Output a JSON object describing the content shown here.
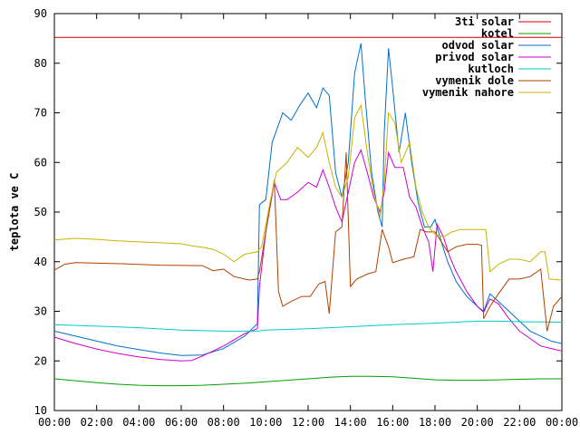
{
  "chart_data": {
    "type": "line",
    "title": "",
    "xlabel": "",
    "ylabel": "teplota ve C",
    "xlim": [
      0,
      24
    ],
    "ylim": [
      10,
      90
    ],
    "x_ticks": [
      "00:00",
      "02:00",
      "04:00",
      "06:00",
      "08:00",
      "10:00",
      "12:00",
      "14:00",
      "16:00",
      "18:00",
      "20:00",
      "22:00",
      "00:00"
    ],
    "y_ticks": [
      10,
      20,
      30,
      40,
      50,
      60,
      70,
      80,
      90
    ],
    "grid": false,
    "legend_position": "top-right",
    "series": [
      {
        "name": "3ti solar",
        "color": "#cc0000",
        "points": [
          [
            0,
            85.2
          ],
          [
            24,
            85.2
          ]
        ]
      },
      {
        "name": "kotel",
        "color": "#00a000",
        "points": [
          [
            0,
            16.4
          ],
          [
            1,
            16
          ],
          [
            2,
            15.6
          ],
          [
            3,
            15.3
          ],
          [
            4,
            15.1
          ],
          [
            5,
            15.0
          ],
          [
            6,
            15.0
          ],
          [
            7,
            15.1
          ],
          [
            8,
            15.3
          ],
          [
            9,
            15.5
          ],
          [
            10,
            15.8
          ],
          [
            11,
            16.1
          ],
          [
            12,
            16.4
          ],
          [
            13,
            16.7
          ],
          [
            14,
            16.9
          ],
          [
            15,
            16.9
          ],
          [
            16,
            16.8
          ],
          [
            17,
            16.5
          ],
          [
            18,
            16.2
          ],
          [
            19,
            16.1
          ],
          [
            20,
            16.1
          ],
          [
            21,
            16.2
          ],
          [
            22,
            16.3
          ],
          [
            23,
            16.4
          ],
          [
            24,
            16.4
          ]
        ]
      },
      {
        "name": "odvod solar",
        "color": "#0070cc",
        "points": [
          [
            0,
            26
          ],
          [
            1,
            25
          ],
          [
            2,
            24
          ],
          [
            3,
            23
          ],
          [
            4,
            22.3
          ],
          [
            5,
            21.6
          ],
          [
            6,
            21.1
          ],
          [
            7,
            21.2
          ],
          [
            8,
            22.5
          ],
          [
            9,
            25
          ],
          [
            9.6,
            27.5
          ],
          [
            9.7,
            51.5
          ],
          [
            10.0,
            52.5
          ],
          [
            10.3,
            64
          ],
          [
            10.8,
            70
          ],
          [
            11.2,
            68.5
          ],
          [
            11.6,
            71.5
          ],
          [
            12.0,
            74
          ],
          [
            12.4,
            71
          ],
          [
            12.7,
            75
          ],
          [
            13.0,
            73.5
          ],
          [
            13.3,
            58
          ],
          [
            13.6,
            53
          ],
          [
            13.9,
            60
          ],
          [
            14.2,
            78
          ],
          [
            14.5,
            84
          ],
          [
            14.7,
            73
          ],
          [
            15.0,
            58
          ],
          [
            15.3,
            50
          ],
          [
            15.5,
            47
          ],
          [
            15.6,
            66
          ],
          [
            15.8,
            83
          ],
          [
            16.0,
            75
          ],
          [
            16.3,
            62
          ],
          [
            16.6,
            70
          ],
          [
            16.9,
            60
          ],
          [
            17.2,
            52
          ],
          [
            17.5,
            47
          ],
          [
            17.8,
            47
          ],
          [
            18.0,
            48.5
          ],
          [
            18.3,
            44
          ],
          [
            18.6,
            40
          ],
          [
            19.0,
            36
          ],
          [
            19.5,
            33
          ],
          [
            20.0,
            31
          ],
          [
            20.3,
            30
          ],
          [
            20.6,
            33.5
          ],
          [
            21,
            32
          ],
          [
            21.5,
            30
          ],
          [
            22,
            28
          ],
          [
            22.5,
            26
          ],
          [
            23,
            25
          ],
          [
            23.5,
            24
          ],
          [
            24,
            23.5
          ]
        ]
      },
      {
        "name": "privod solar",
        "color": "#cc00cc",
        "points": [
          [
            0,
            24.8
          ],
          [
            1,
            23.5
          ],
          [
            2,
            22.4
          ],
          [
            3,
            21.5
          ],
          [
            4,
            20.8
          ],
          [
            5,
            20.3
          ],
          [
            6,
            20
          ],
          [
            6.5,
            20.1
          ],
          [
            7,
            21
          ],
          [
            8,
            23
          ],
          [
            9,
            25.5
          ],
          [
            9.6,
            26.5
          ],
          [
            9.7,
            35
          ],
          [
            10.0,
            46
          ],
          [
            10.4,
            56
          ],
          [
            10.7,
            52.5
          ],
          [
            11.0,
            52.5
          ],
          [
            11.5,
            54
          ],
          [
            12.0,
            56
          ],
          [
            12.4,
            55
          ],
          [
            12.7,
            58.5
          ],
          [
            13.0,
            55
          ],
          [
            13.3,
            51
          ],
          [
            13.6,
            48
          ],
          [
            13.9,
            54
          ],
          [
            14.2,
            60
          ],
          [
            14.5,
            62.5
          ],
          [
            14.8,
            58
          ],
          [
            15.1,
            53
          ],
          [
            15.4,
            50
          ],
          [
            15.6,
            54
          ],
          [
            15.8,
            62
          ],
          [
            16.1,
            59
          ],
          [
            16.5,
            59
          ],
          [
            16.8,
            53
          ],
          [
            17.1,
            51
          ],
          [
            17.4,
            47
          ],
          [
            17.7,
            44
          ],
          [
            17.9,
            38
          ],
          [
            18.1,
            47.5
          ],
          [
            18.4,
            45
          ],
          [
            18.7,
            41
          ],
          [
            19.0,
            38
          ],
          [
            19.5,
            34
          ],
          [
            20.0,
            31
          ],
          [
            20.3,
            29.8
          ],
          [
            20.6,
            32.5
          ],
          [
            21,
            31.5
          ],
          [
            21.5,
            28.5
          ],
          [
            22,
            26
          ],
          [
            22.5,
            24.5
          ],
          [
            23,
            23
          ],
          [
            23.5,
            22.5
          ],
          [
            24,
            22
          ]
        ]
      },
      {
        "name": "kutloch",
        "color": "#00cccc",
        "points": [
          [
            0,
            27.3
          ],
          [
            2,
            27
          ],
          [
            4,
            26.7
          ],
          [
            6,
            26.2
          ],
          [
            8,
            26.0
          ],
          [
            9.6,
            26.0
          ],
          [
            10,
            26.2
          ],
          [
            12,
            26.5
          ],
          [
            14,
            26.9
          ],
          [
            16,
            27.3
          ],
          [
            18,
            27.6
          ],
          [
            20,
            28.0
          ],
          [
            21,
            28.0
          ],
          [
            22,
            27.9
          ],
          [
            24,
            27.8
          ]
        ]
      },
      {
        "name": "vymenik dole",
        "color": "#b04000",
        "points": [
          [
            0,
            38.3
          ],
          [
            0.5,
            39.5
          ],
          [
            1,
            39.8
          ],
          [
            3,
            39.6
          ],
          [
            5,
            39.3
          ],
          [
            7,
            39.2
          ],
          [
            7.5,
            38.2
          ],
          [
            8,
            38.5
          ],
          [
            8.5,
            37
          ],
          [
            9.2,
            36.3
          ],
          [
            9.6,
            36.5
          ],
          [
            9.7,
            38
          ],
          [
            10.0,
            46
          ],
          [
            10.4,
            56.5
          ],
          [
            10.6,
            34
          ],
          [
            10.8,
            31
          ],
          [
            11.2,
            32
          ],
          [
            11.7,
            33
          ],
          [
            12.1,
            33
          ],
          [
            12.5,
            35.5
          ],
          [
            12.8,
            36
          ],
          [
            13.0,
            29.5
          ],
          [
            13.3,
            46
          ],
          [
            13.6,
            47
          ],
          [
            13.8,
            62
          ],
          [
            14.0,
            35
          ],
          [
            14.3,
            36.5
          ],
          [
            14.8,
            37.5
          ],
          [
            15.2,
            38
          ],
          [
            15.5,
            46.5
          ],
          [
            15.8,
            43
          ],
          [
            16.0,
            39.8
          ],
          [
            16.5,
            40.5
          ],
          [
            17.0,
            41
          ],
          [
            17.3,
            46.5
          ],
          [
            17.6,
            46
          ],
          [
            18.0,
            46
          ],
          [
            18.3,
            44
          ],
          [
            18.6,
            42
          ],
          [
            19.0,
            43
          ],
          [
            19.5,
            43.5
          ],
          [
            20.0,
            43.5
          ],
          [
            20.2,
            43.3
          ],
          [
            20.3,
            28.5
          ],
          [
            20.6,
            31
          ],
          [
            21.0,
            33.5
          ],
          [
            21.5,
            36.5
          ],
          [
            22.0,
            36.5
          ],
          [
            22.5,
            37
          ],
          [
            23.0,
            38.5
          ],
          [
            23.3,
            26
          ],
          [
            23.6,
            31
          ],
          [
            24,
            33
          ]
        ]
      },
      {
        "name": "vymenik nahore",
        "color": "#c8b400",
        "points": [
          [
            0,
            44.4
          ],
          [
            1,
            44.7
          ],
          [
            2,
            44.5
          ],
          [
            3,
            44.2
          ],
          [
            4,
            44
          ],
          [
            5,
            43.8
          ],
          [
            6,
            43.6
          ],
          [
            6.5,
            43.2
          ],
          [
            7,
            42.9
          ],
          [
            7.5,
            42.5
          ],
          [
            8,
            41.5
          ],
          [
            8.5,
            40.0
          ],
          [
            9,
            41.5
          ],
          [
            9.6,
            42
          ],
          [
            9.8,
            43
          ],
          [
            10.2,
            52
          ],
          [
            10.5,
            58
          ],
          [
            11.0,
            60
          ],
          [
            11.5,
            63
          ],
          [
            12.0,
            61
          ],
          [
            12.4,
            63
          ],
          [
            12.7,
            66
          ],
          [
            13.0,
            60
          ],
          [
            13.3,
            55
          ],
          [
            13.6,
            53
          ],
          [
            13.9,
            57
          ],
          [
            14.2,
            69
          ],
          [
            14.5,
            71.5
          ],
          [
            14.8,
            62
          ],
          [
            15.1,
            54
          ],
          [
            15.4,
            49
          ],
          [
            15.6,
            56
          ],
          [
            15.8,
            70
          ],
          [
            16.1,
            68
          ],
          [
            16.4,
            60
          ],
          [
            16.8,
            64
          ],
          [
            17.1,
            55
          ],
          [
            17.4,
            50
          ],
          [
            17.7,
            47
          ],
          [
            18.0,
            45.5
          ],
          [
            18.4,
            45
          ],
          [
            18.8,
            46
          ],
          [
            19.2,
            46.5
          ],
          [
            20,
            46.5
          ],
          [
            20.4,
            46.5
          ],
          [
            20.6,
            38
          ],
          [
            21,
            39.5
          ],
          [
            21.5,
            40.5
          ],
          [
            22,
            40.5
          ],
          [
            22.5,
            40
          ],
          [
            23,
            42
          ],
          [
            23.2,
            42
          ],
          [
            23.4,
            36.5
          ],
          [
            24,
            36.3
          ]
        ]
      }
    ]
  }
}
